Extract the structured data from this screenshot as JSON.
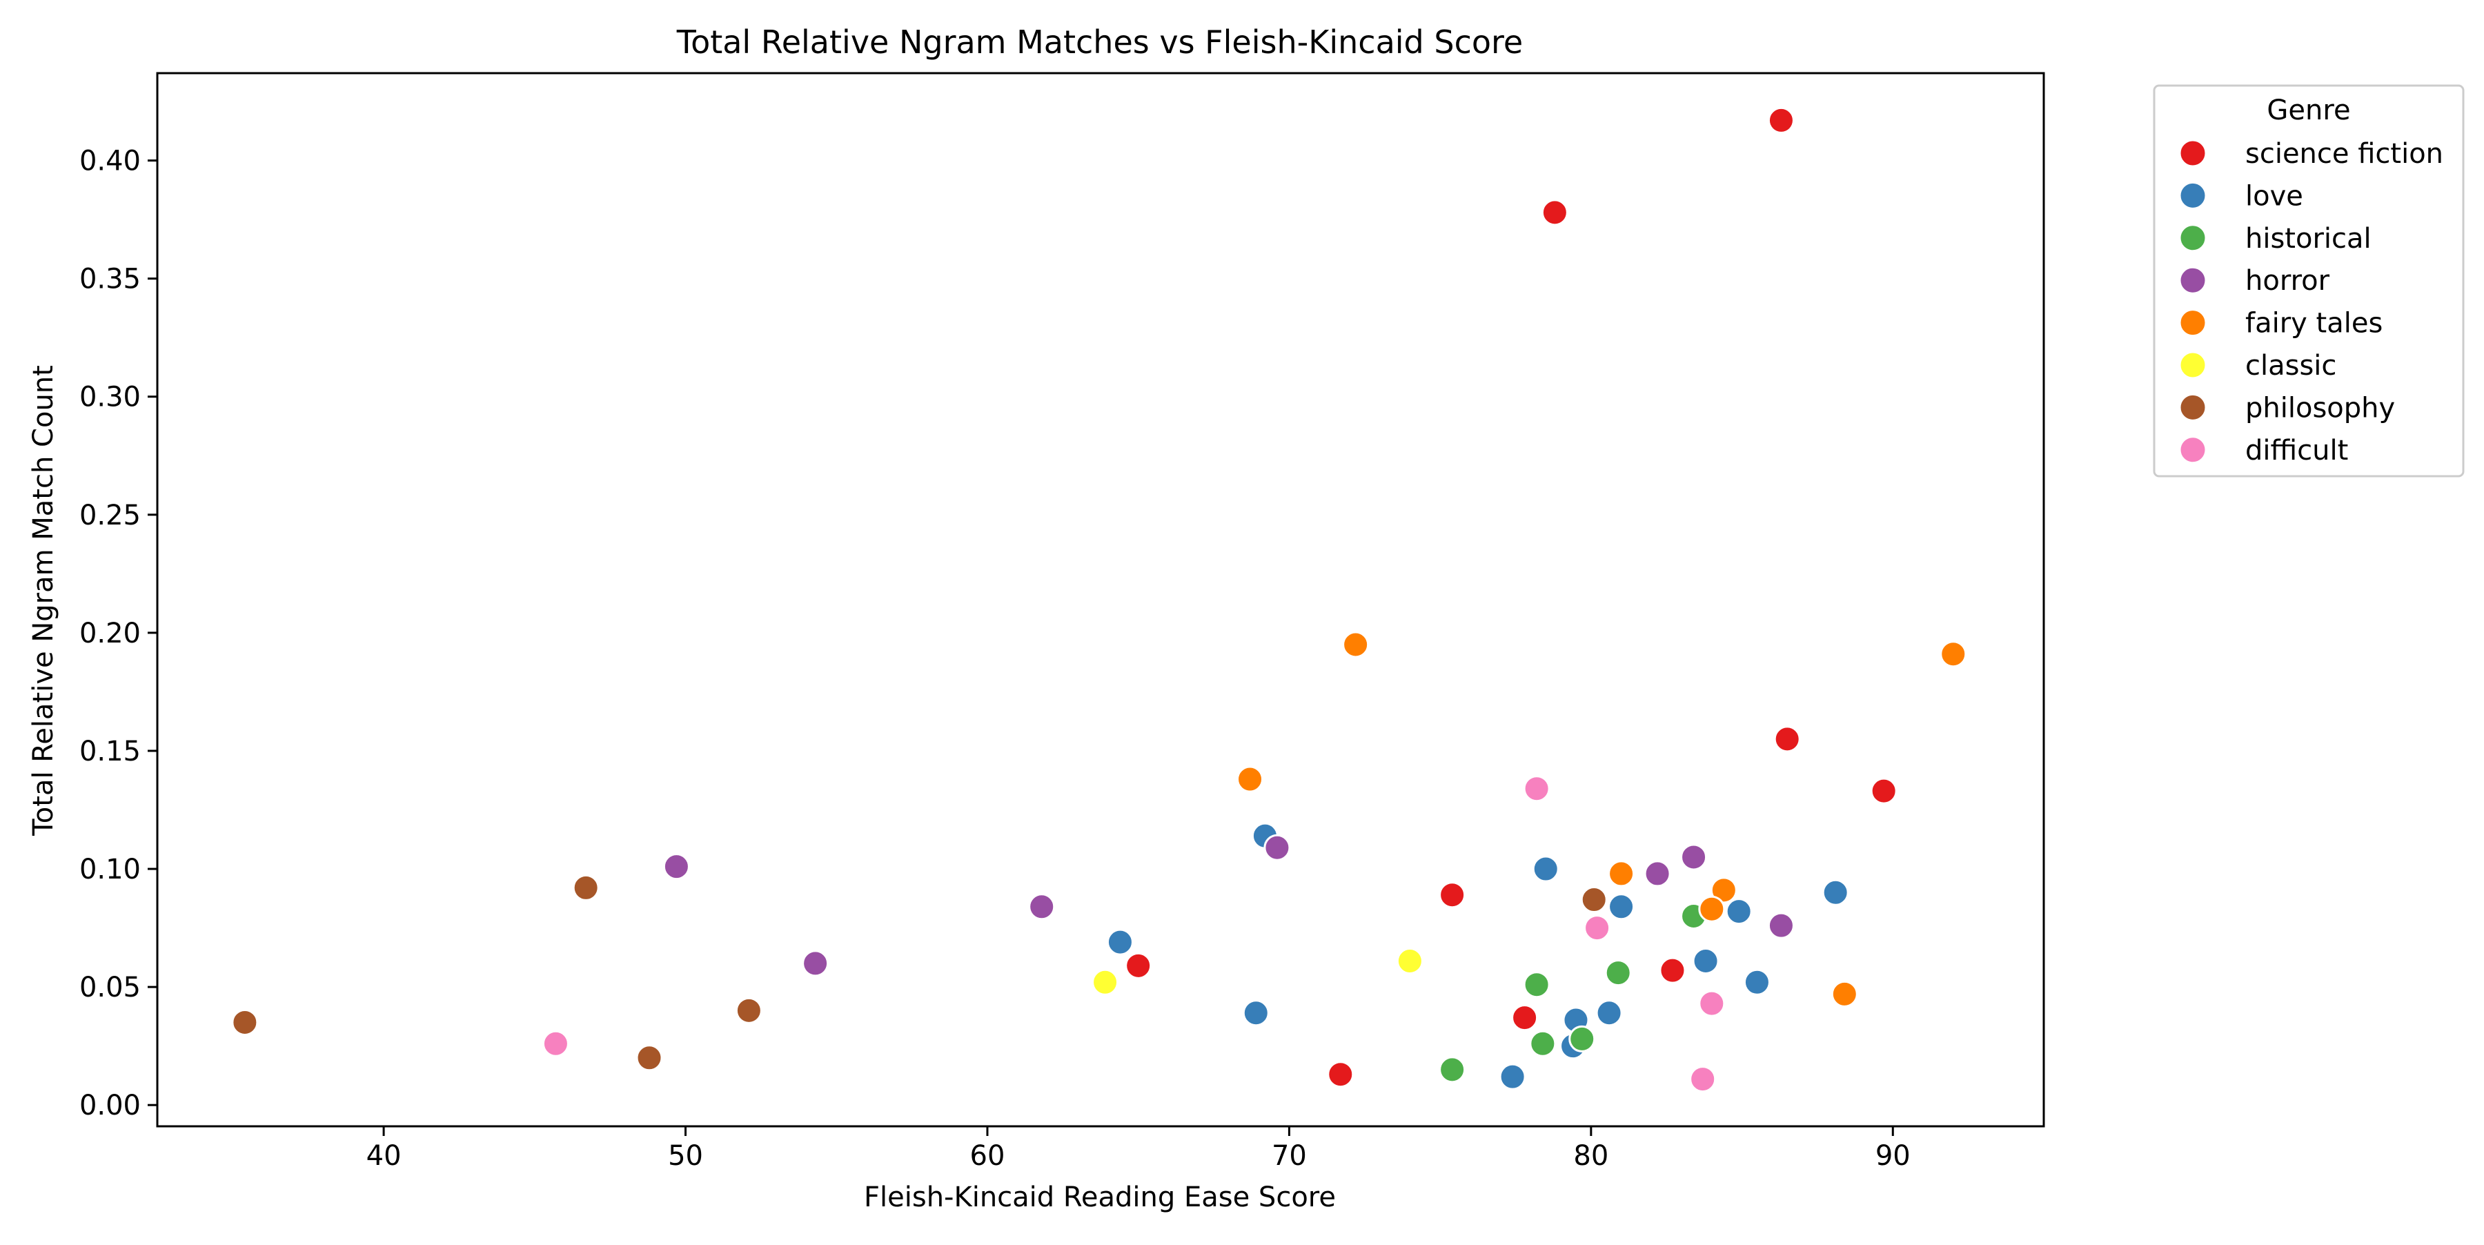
{
  "chart_data": {
    "type": "scatter",
    "title": "Total Relative Ngram Matches vs Fleish-Kincaid Score",
    "xlabel": "Fleish-Kincaid Reading Ease Score",
    "ylabel": "Total Relative Ngram Match Count",
    "xlim": [
      32.5,
      95
    ],
    "ylim": [
      -0.009,
      0.437
    ],
    "xticks": [
      40,
      50,
      60,
      70,
      80,
      90
    ],
    "yticks": [
      0.0,
      0.05,
      0.1,
      0.15,
      0.2,
      0.25,
      0.3,
      0.35,
      0.4
    ],
    "ytick_labels": [
      "0.00",
      "0.05",
      "0.10",
      "0.15",
      "0.20",
      "0.25",
      "0.30",
      "0.35",
      "0.40"
    ],
    "grid": false,
    "legend": {
      "title": "Genre",
      "position": "outside-top-right"
    },
    "series": [
      {
        "name": "science fiction",
        "color": "#e41a1c",
        "points": [
          [
            86.3,
            0.417
          ],
          [
            78.8,
            0.378
          ],
          [
            86.5,
            0.155
          ],
          [
            89.7,
            0.133
          ],
          [
            75.4,
            0.089
          ],
          [
            65.0,
            0.059
          ],
          [
            82.7,
            0.057
          ],
          [
            77.8,
            0.037
          ],
          [
            71.7,
            0.013
          ]
        ]
      },
      {
        "name": "love",
        "color": "#377eb8",
        "points": [
          [
            69.2,
            0.114
          ],
          [
            78.5,
            0.1
          ],
          [
            88.1,
            0.09
          ],
          [
            81.0,
            0.084
          ],
          [
            84.9,
            0.082
          ],
          [
            64.4,
            0.069
          ],
          [
            83.8,
            0.061
          ],
          [
            85.5,
            0.052
          ],
          [
            68.9,
            0.039
          ],
          [
            80.6,
            0.039
          ],
          [
            79.5,
            0.036
          ],
          [
            79.4,
            0.025
          ],
          [
            77.4,
            0.012
          ]
        ]
      },
      {
        "name": "historical",
        "color": "#4daf4a",
        "points": [
          [
            83.4,
            0.08
          ],
          [
            80.9,
            0.056
          ],
          [
            78.2,
            0.051
          ],
          [
            79.7,
            0.028
          ],
          [
            78.4,
            0.026
          ],
          [
            75.4,
            0.015
          ]
        ]
      },
      {
        "name": "horror",
        "color": "#984ea3",
        "points": [
          [
            69.6,
            0.109
          ],
          [
            83.4,
            0.105
          ],
          [
            49.7,
            0.101
          ],
          [
            82.2,
            0.098
          ],
          [
            61.8,
            0.084
          ],
          [
            86.3,
            0.076
          ],
          [
            54.3,
            0.06
          ]
        ]
      },
      {
        "name": "fairy tales",
        "color": "#ff7f00",
        "points": [
          [
            72.2,
            0.195
          ],
          [
            92.0,
            0.191
          ],
          [
            68.7,
            0.138
          ],
          [
            81.0,
            0.098
          ],
          [
            84.4,
            0.091
          ],
          [
            84.0,
            0.083
          ],
          [
            88.4,
            0.047
          ]
        ]
      },
      {
        "name": "classic",
        "color": "#ffff33",
        "points": [
          [
            74.0,
            0.061
          ],
          [
            63.9,
            0.052
          ]
        ]
      },
      {
        "name": "philosophy",
        "color": "#a65628",
        "points": [
          [
            46.7,
            0.092
          ],
          [
            80.1,
            0.087
          ],
          [
            52.1,
            0.04
          ],
          [
            35.4,
            0.035
          ],
          [
            48.8,
            0.02
          ]
        ]
      },
      {
        "name": "difficult",
        "color": "#f781bf",
        "points": [
          [
            78.2,
            0.134
          ],
          [
            80.2,
            0.075
          ],
          [
            84.0,
            0.043
          ],
          [
            45.7,
            0.026
          ],
          [
            83.7,
            0.011
          ]
        ]
      }
    ]
  }
}
